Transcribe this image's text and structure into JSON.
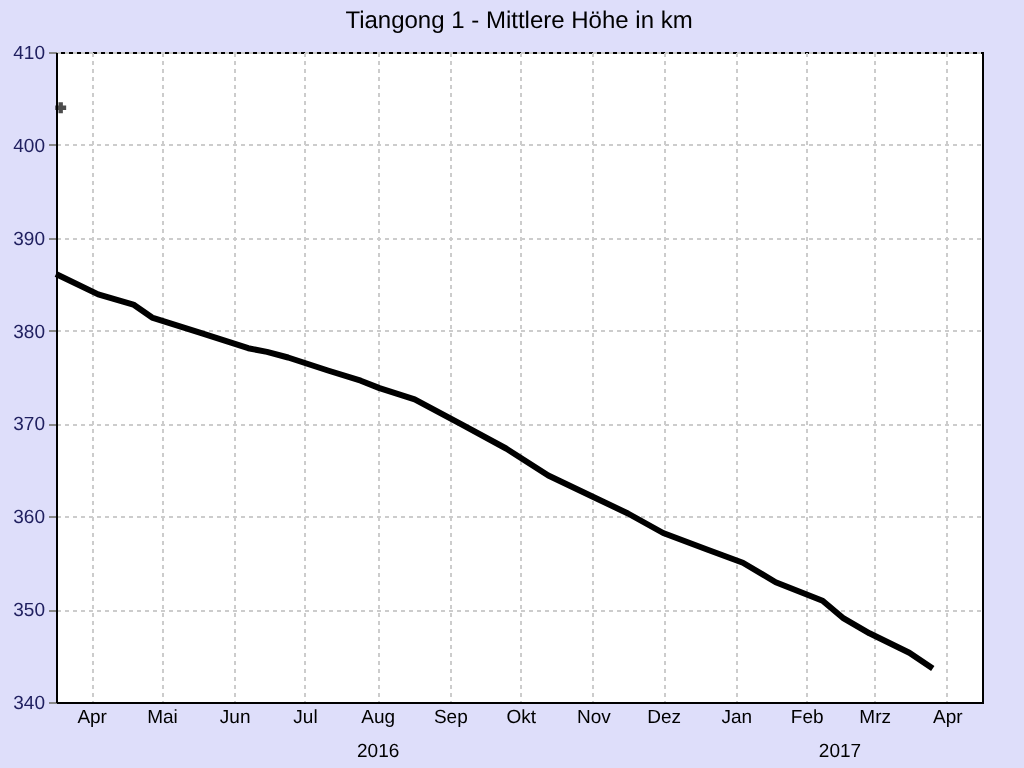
{
  "chart_data": {
    "type": "line",
    "title": "Tiangong 1 - Mittlere Höhe in km",
    "series": [
      {
        "color": "#000000",
        "x": [
          "2016-04-01",
          "2016-04-19",
          "2016-05-04",
          "2016-05-12",
          "2016-06-01",
          "2016-06-22",
          "2016-06-30",
          "2016-07-09",
          "2016-07-26",
          "2016-08-09",
          "2016-08-17",
          "2016-09-01",
          "2016-09-21",
          "2016-10-10",
          "2016-10-28",
          "2016-11-16",
          "2016-12-01",
          "2016-12-16",
          "2017-01-04",
          "2017-01-19",
          "2017-02-02",
          "2017-02-22",
          "2017-03-03",
          "2017-03-14",
          "2017-03-31",
          "2017-04-10"
        ],
        "values": [
          386.1,
          383.9,
          382.8,
          381.4,
          379.8,
          378.1,
          377.7,
          377.1,
          375.7,
          374.6,
          373.8,
          372.6,
          369.9,
          367.3,
          364.4,
          362.1,
          360.3,
          358.2,
          356.4,
          355.0,
          352.9,
          350.9,
          349.0,
          347.4,
          345.3,
          343.6
        ]
      },
      {
        "type": "scatter",
        "color": "#000000",
        "marker": "cross",
        "x": [
          "2016-04-03"
        ],
        "values": [
          404
        ]
      }
    ],
    "xlim": [
      "2016-04-01",
      "2017-05-01"
    ],
    "xticks": [
      {
        "value": "2016-04-16",
        "label": "Apr"
      },
      {
        "value": "2016-05-16",
        "label": "Mai"
      },
      {
        "value": "2016-06-16",
        "label": "Jun"
      },
      {
        "value": "2016-07-16",
        "label": "Jul"
      },
      {
        "value": "2016-08-16",
        "label": "Aug"
      },
      {
        "value": "2016-09-16",
        "label": "Sep"
      },
      {
        "value": "2016-10-16",
        "label": "Okt"
      },
      {
        "value": "2016-11-16",
        "label": "Nov"
      },
      {
        "value": "2016-12-16",
        "label": "Dez"
      },
      {
        "value": "2017-01-16",
        "label": "Jan"
      },
      {
        "value": "2017-02-15",
        "label": "Feb"
      },
      {
        "value": "2017-03-16",
        "label": "Mrz"
      },
      {
        "value": "2017-04-16",
        "label": "Apr"
      }
    ],
    "x2lim": [
      "2016-04-01",
      "2017-05-01"
    ],
    "x2ticks": [
      {
        "value": "2016-08-16",
        "label": "2016"
      },
      {
        "value": "2017-03-01",
        "label": "2017"
      }
    ],
    "ylim": [
      340,
      410
    ],
    "yticks": [
      340,
      350,
      360,
      370,
      380,
      390,
      400,
      410
    ],
    "grid": true
  }
}
